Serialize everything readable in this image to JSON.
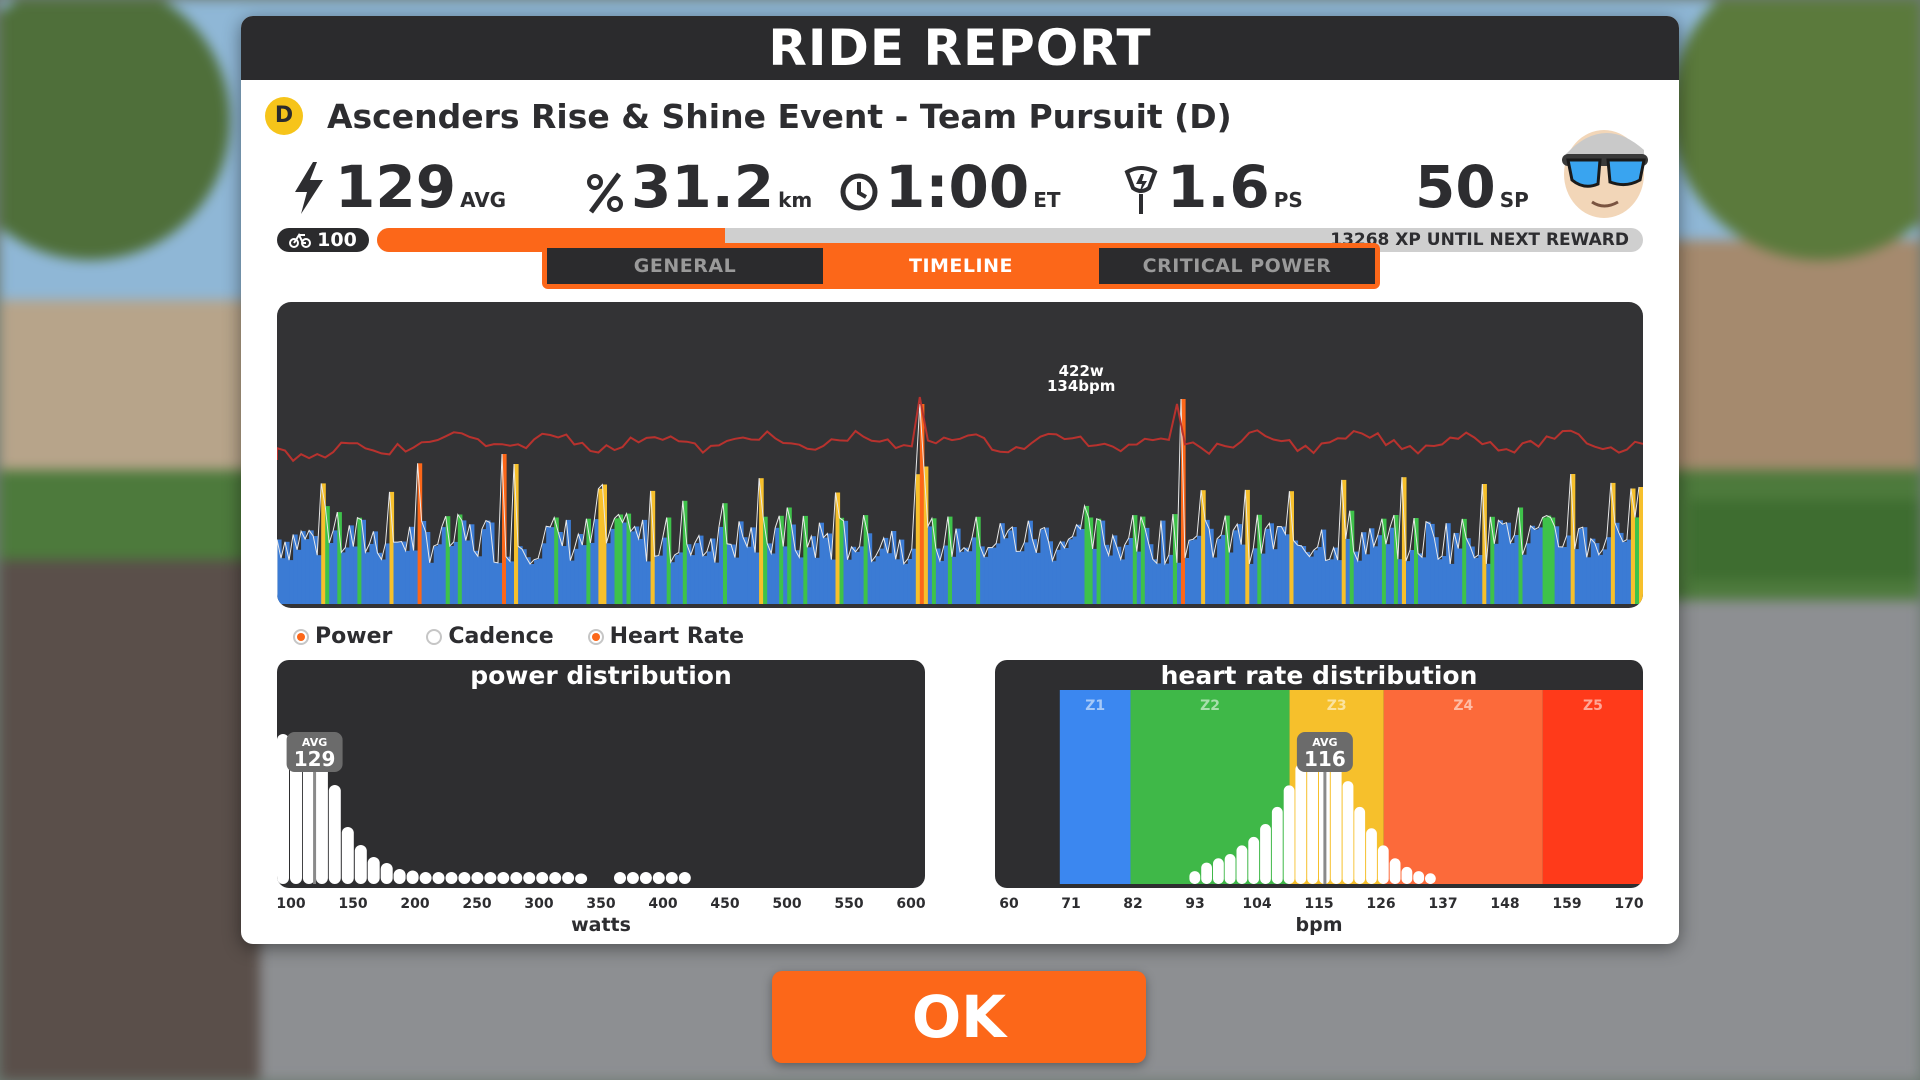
{
  "header": {
    "title": "RIDE REPORT"
  },
  "event": {
    "category": "D",
    "name": "Ascenders Rise & Shine Event - Team Pursuit (D)"
  },
  "stats": {
    "power": {
      "value": "129",
      "unit": "AVG"
    },
    "distance": {
      "value": "31.2",
      "unit": "km"
    },
    "elapsed": {
      "value": "1:00",
      "unit": "ET"
    },
    "powerups": {
      "value": "1.6",
      "unit": "PS"
    },
    "sport_points": {
      "value": "50",
      "unit": "SP"
    }
  },
  "progress": {
    "level": "100",
    "xp_label": "13268 XP UNTIL NEXT REWARD",
    "fraction": 0.275
  },
  "tabs": [
    {
      "label": "GENERAL",
      "active": false
    },
    {
      "label": "TIMELINE",
      "active": true
    },
    {
      "label": "CRITICAL POWER",
      "active": false
    }
  ],
  "timeline": {
    "peak_power": "422w",
    "peak_hr": "134bpm",
    "peak_position": 0.57,
    "power_zone_colors": [
      "#3b7bd4",
      "#3ec24a",
      "#f6c02c",
      "#fc6719",
      "#ff3b1f"
    ],
    "hr_line_color": "#b8322e"
  },
  "legend": [
    {
      "label": "Power",
      "on": true
    },
    {
      "label": "Cadence",
      "on": false
    },
    {
      "label": "Heart Rate",
      "on": true
    }
  ],
  "chart_data": [
    {
      "type": "bar",
      "title": "power distribution",
      "xlabel": "watts",
      "xlim": [
        100,
        600
      ],
      "x_ticks": [
        "100",
        "150",
        "200",
        "250",
        "300",
        "350",
        "400",
        "450",
        "500",
        "550",
        "600"
      ],
      "avg_label": "AVG",
      "avg_value": "129",
      "avg": 129,
      "bin_width": 10,
      "x": [
        100,
        110,
        120,
        130,
        140,
        150,
        160,
        170,
        180,
        190,
        200,
        210,
        220,
        230,
        240,
        250,
        260,
        270,
        280,
        290,
        300,
        310,
        320,
        330,
        340,
        350,
        360,
        370,
        380,
        390,
        400,
        410
      ],
      "values": [
        100,
        96,
        92,
        86,
        66,
        38,
        26,
        18,
        14,
        10,
        9,
        8,
        8,
        8,
        8,
        8,
        8,
        8,
        8,
        8,
        8,
        8,
        8,
        7,
        0,
        0,
        8,
        8,
        8,
        8,
        8,
        8
      ]
    },
    {
      "type": "bar",
      "title": "heart rate distribution",
      "xlabel": "bpm",
      "xlim": [
        60,
        170
      ],
      "x_ticks": [
        "60",
        "71",
        "82",
        "93",
        "104",
        "115",
        "126",
        "137",
        "148",
        "159",
        "170"
      ],
      "avg_label": "AVG",
      "avg_value": "116",
      "avg": 116,
      "bin_width": 2,
      "zones": [
        {
          "name": "Z1",
          "from": 71,
          "to": 83,
          "color": "#3b87f0"
        },
        {
          "name": "Z2",
          "from": 83,
          "to": 110,
          "color": "#3fb848"
        },
        {
          "name": "Z3",
          "from": 110,
          "to": 126,
          "color": "#f6c02c"
        },
        {
          "name": "Z4",
          "from": 126,
          "to": 153,
          "color": "#fc6a3a"
        },
        {
          "name": "Z5",
          "from": 153,
          "to": 170,
          "color": "#ff3a1a"
        }
      ],
      "x": [
        93,
        95,
        97,
        99,
        101,
        103,
        105,
        107,
        109,
        111,
        113,
        115,
        117,
        119,
        121,
        123,
        125,
        127,
        129,
        131,
        133
      ],
      "values": [
        6,
        10,
        12,
        14,
        18,
        22,
        28,
        36,
        46,
        56,
        64,
        70,
        60,
        48,
        36,
        26,
        18,
        12,
        8,
        6,
        5
      ]
    }
  ]
}
